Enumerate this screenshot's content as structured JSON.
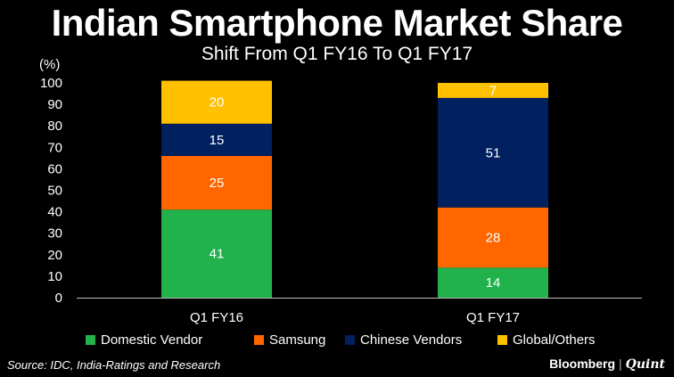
{
  "chart_data": {
    "type": "bar",
    "stacked": true,
    "title": "Indian Smartphone Market Share",
    "subtitle": "Shift From Q1 FY16 To Q1 FY17",
    "ylabel": "(%)",
    "xlabel": "",
    "ylim": [
      0,
      100
    ],
    "yticks": [
      0,
      10,
      20,
      30,
      40,
      50,
      60,
      70,
      80,
      90,
      100
    ],
    "categories": [
      "Q1 FY16",
      "Q1 FY17"
    ],
    "series": [
      {
        "name": "Domestic Vendor",
        "color": "#22b24c",
        "values": [
          41,
          14
        ]
      },
      {
        "name": "Samsung",
        "color": "#ff6600",
        "values": [
          25,
          28
        ]
      },
      {
        "name": "Chinese Vendors",
        "color": "#002060",
        "values": [
          15,
          51
        ]
      },
      {
        "name": "Global/Others",
        "color": "#ffc000",
        "values": [
          20,
          7
        ]
      }
    ],
    "legend_position": "bottom"
  },
  "footer": {
    "source": "Source: IDC, India-Ratings and Research",
    "brand_left": "Bloomberg",
    "brand_sep": "|",
    "brand_right": "Quint"
  }
}
